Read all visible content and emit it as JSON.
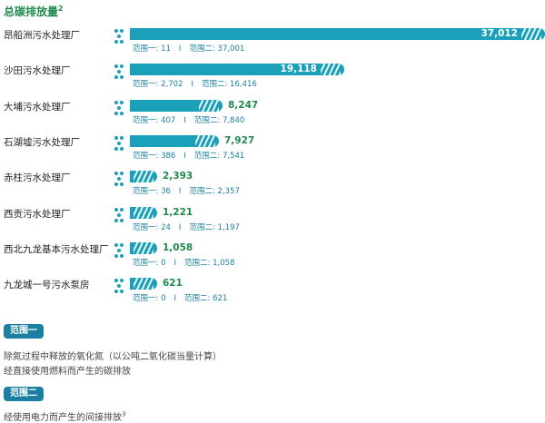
{
  "title": "总碳排放量",
  "title_sup": "2",
  "colors": {
    "bar": "#1aa0b8",
    "value_outside": "#1f8a4c",
    "scope_text": "#1a7fa0",
    "tag_bg": "#1a7fa0"
  },
  "scope1_label": "范围一",
  "scope2_label": "范围二",
  "separator": "I",
  "chart_data": {
    "type": "bar",
    "orientation": "horizontal",
    "title": "总碳排放量",
    "categories": [
      "昂船洲污水处理厂",
      "沙田污水处理厂",
      "大埔污水处理厂",
      "石湖墟污水处理厂",
      "赤柱污水处理厂",
      "西贡污水处理厂",
      "西北九龙基本污水处理厂",
      "九龙城一号污水泵房"
    ],
    "series": [
      {
        "name": "总碳排放量",
        "values": [
          37012,
          19118,
          8247,
          7927,
          2393,
          1221,
          1058,
          621
        ]
      },
      {
        "name": "范围一",
        "values": [
          11,
          2702,
          407,
          386,
          36,
          24,
          0,
          0
        ]
      },
      {
        "name": "范围二",
        "values": [
          37001,
          16416,
          7840,
          7541,
          2357,
          1197,
          1058,
          621
        ]
      }
    ],
    "value_labels": [
      "37,012",
      "19,118",
      "8,247",
      "7,927",
      "2,393",
      "1,221",
      "1,058",
      "621"
    ],
    "scope1_labels": [
      "11",
      "2,702",
      "407",
      "386",
      "36",
      "24",
      "0",
      "0"
    ],
    "scope2_labels": [
      "37,001",
      "16,416",
      "7,840",
      "7,541",
      "2,357",
      "1,197",
      "1,058",
      "621"
    ]
  },
  "legend": {
    "scope1_tag": "范围一",
    "scope1_lines": [
      "除氮过程中释放的氧化氮（以公吨二氧化碳当量计算）",
      "经直接使用燃料而产生的碳排放"
    ],
    "scope2_tag": "范围二",
    "scope2_line": "经使用电力而产生的间接排放",
    "scope2_sup": "3"
  }
}
